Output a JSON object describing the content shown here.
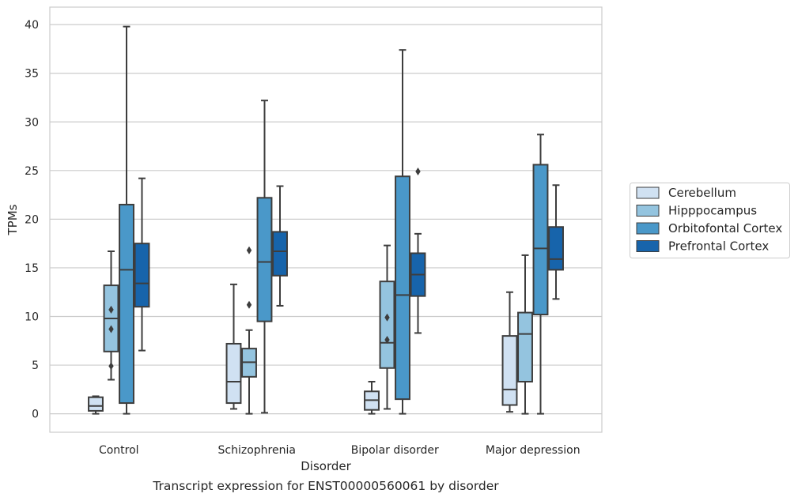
{
  "caption": "Transcript expression for ENST00000560061 by disorder",
  "chart_data": {
    "type": "boxplot",
    "xlabel": "Disorder",
    "ylabel": "TPMs",
    "ylim": [
      -1.9,
      41.8
    ],
    "yticks": [
      0,
      5,
      10,
      15,
      20,
      25,
      30,
      35,
      40
    ],
    "grid": true,
    "legend_position": "right",
    "categories": [
      "Control",
      "Schizophrenia",
      "Bipolar disorder",
      "Major depression"
    ],
    "series": [
      {
        "name": "Cerebellum",
        "color": "#d0e1f2",
        "boxes": [
          {
            "whislo": 0.0,
            "q1": 0.3,
            "med": 0.8,
            "q3": 1.7,
            "whishi": 1.8,
            "fliers": []
          },
          {
            "whislo": 0.5,
            "q1": 1.1,
            "med": 3.3,
            "q3": 7.2,
            "whishi": 13.3,
            "fliers": []
          },
          {
            "whislo": 0.0,
            "q1": 0.4,
            "med": 1.4,
            "q3": 2.3,
            "whishi": 3.3,
            "fliers": []
          },
          {
            "whislo": 0.2,
            "q1": 0.9,
            "med": 2.5,
            "q3": 8.0,
            "whishi": 12.5,
            "fliers": []
          }
        ]
      },
      {
        "name": "Hipppocampus",
        "color": "#94c4df",
        "boxes": [
          {
            "whislo": 3.5,
            "q1": 6.4,
            "med": 9.8,
            "q3": 13.2,
            "whishi": 16.7,
            "fliers": [
              4.9,
              8.7,
              10.7
            ]
          },
          {
            "whislo": 0.0,
            "q1": 3.8,
            "med": 5.3,
            "q3": 6.7,
            "whishi": 8.6,
            "fliers": [
              11.2,
              16.8
            ]
          },
          {
            "whislo": 0.5,
            "q1": 4.7,
            "med": 7.3,
            "q3": 13.6,
            "whishi": 17.3,
            "fliers": [
              7.6,
              9.9
            ]
          },
          {
            "whislo": 0.0,
            "q1": 3.3,
            "med": 8.2,
            "q3": 10.4,
            "whishi": 16.3,
            "fliers": []
          }
        ]
      },
      {
        "name": "Orbitofontal Cortex",
        "color": "#4a98c9",
        "boxes": [
          {
            "whislo": 0.0,
            "q1": 1.1,
            "med": 14.8,
            "q3": 21.5,
            "whishi": 39.8,
            "fliers": []
          },
          {
            "whislo": 0.1,
            "q1": 9.5,
            "med": 15.6,
            "q3": 22.2,
            "whishi": 32.2,
            "fliers": []
          },
          {
            "whislo": 0.0,
            "q1": 1.5,
            "med": 12.2,
            "q3": 24.4,
            "whishi": 37.4,
            "fliers": []
          },
          {
            "whislo": 0.0,
            "q1": 10.2,
            "med": 17.0,
            "q3": 25.6,
            "whishi": 28.7,
            "fliers": []
          }
        ]
      },
      {
        "name": "Prefrontal Cortex",
        "color": "#1764ab",
        "boxes": [
          {
            "whislo": 6.5,
            "q1": 11.0,
            "med": 13.4,
            "q3": 17.5,
            "whishi": 24.2,
            "fliers": []
          },
          {
            "whislo": 11.1,
            "q1": 14.2,
            "med": 16.7,
            "q3": 18.7,
            "whishi": 23.4,
            "fliers": []
          },
          {
            "whislo": 8.3,
            "q1": 12.1,
            "med": 14.3,
            "q3": 16.5,
            "whishi": 18.5,
            "fliers": [
              24.9
            ]
          },
          {
            "whislo": 11.8,
            "q1": 14.8,
            "med": 15.9,
            "q3": 19.2,
            "whishi": 23.5,
            "fliers": []
          }
        ]
      }
    ]
  }
}
